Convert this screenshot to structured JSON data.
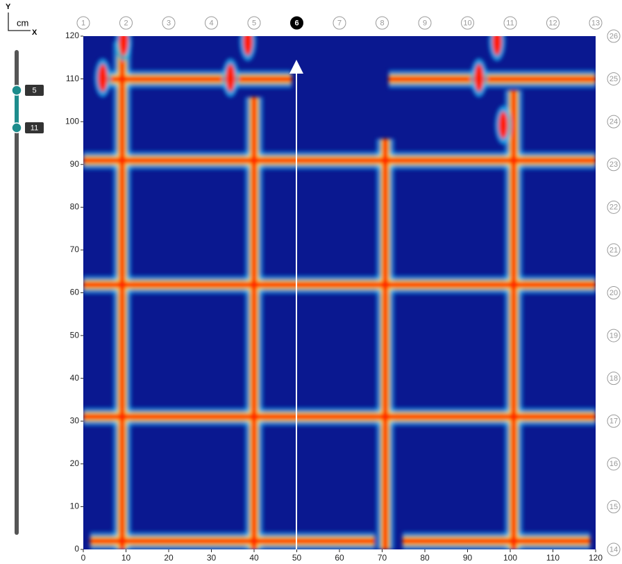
{
  "header": {
    "y_label": "Y",
    "unit": "cm",
    "x_label": "X"
  },
  "slider": {
    "start": "5",
    "end": "11"
  },
  "top_lines": [
    "1",
    "2",
    "3",
    "4",
    "5",
    "6",
    "7",
    "8",
    "9",
    "10",
    "11",
    "12",
    "13"
  ],
  "selected_line": "6",
  "side_lines": [
    "14",
    "15",
    "16",
    "17",
    "18",
    "19",
    "20",
    "21",
    "22",
    "23",
    "24",
    "25",
    "26"
  ],
  "xlim": [
    0,
    120
  ],
  "ylim": [
    0,
    120
  ],
  "xticks": [
    0,
    10,
    20,
    30,
    40,
    50,
    60,
    70,
    80,
    90,
    100,
    110,
    120
  ],
  "yticks": [
    0,
    10,
    20,
    30,
    40,
    50,
    60,
    70,
    80,
    90,
    100,
    110,
    120
  ]
}
